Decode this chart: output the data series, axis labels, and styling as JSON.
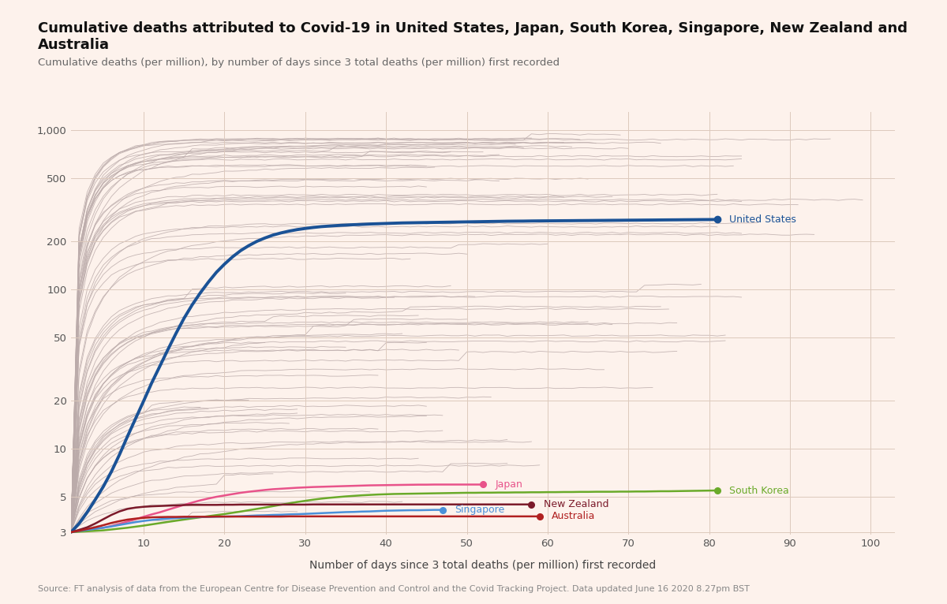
{
  "title": "Cumulative deaths attributed to Covid-19 in United States, Japan, South Korea, Singapore, New Zealand and Australia",
  "subtitle": "Cumulative deaths (per million), by number of days since 3 total deaths (per million) first recorded",
  "xlabel": "Number of days since 3 total deaths (per million) first recorded",
  "source": "Source: FT analysis of data from the European Centre for Disease Prevention and Control and the Covid Tracking Project. Data updated June 16 2020 8.27pm BST",
  "background_color": "#fdf2ec",
  "plot_background": "#fdf2ec",
  "grid_color": "#ddc9bc",
  "yticks": [
    3,
    5,
    10,
    20,
    50,
    100,
    200,
    500,
    1000
  ],
  "xticks": [
    10,
    20,
    30,
    40,
    50,
    60,
    70,
    80,
    90,
    100
  ],
  "xlim": [
    1,
    103
  ],
  "ylim_log": [
    2.9,
    1300
  ],
  "gray_line_color": "#bbabaa",
  "us_color": "#1a5296",
  "japan_color": "#e8538a",
  "sk_color": "#6aaa2a",
  "singapore_color": "#4a90d9",
  "nz_color": "#7b1a2a",
  "australia_color": "#b02020",
  "us_linewidth": 2.8,
  "featured_linewidth": 1.8,
  "title_fontsize": 13,
  "subtitle_fontsize": 9.5,
  "label_fontsize": 9,
  "source_fontsize": 8,
  "us_data": [
    3.0,
    3.4,
    4.0,
    4.8,
    5.8,
    7.2,
    9.2,
    12.0,
    15.5,
    20.0,
    26.0,
    33.0,
    42.0,
    53.0,
    66.0,
    80.0,
    95.0,
    111.0,
    128.0,
    144.0,
    160.0,
    175.0,
    188.0,
    200.0,
    210.0,
    219.0,
    226.0,
    232.0,
    237.0,
    241.0,
    244.5,
    247.5,
    249.5,
    251.5,
    253.0,
    254.5,
    255.5,
    257.0,
    258.0,
    259.0,
    260.0,
    261.0,
    261.5,
    262.0,
    262.5,
    263.0,
    263.5,
    264.0,
    264.5,
    265.0,
    265.5,
    266.0,
    266.5,
    267.0,
    267.5,
    267.8,
    268.0,
    268.5,
    268.8,
    269.0,
    269.2,
    269.5,
    269.7,
    270.0,
    270.2,
    270.5,
    270.7,
    271.0,
    271.2,
    271.5,
    271.7,
    272.0,
    272.2,
    272.5,
    272.8,
    273.0,
    273.3,
    273.5,
    273.8,
    274.0,
    274.3
  ],
  "japan_data": [
    3.0,
    3.05,
    3.1,
    3.15,
    3.2,
    3.28,
    3.38,
    3.5,
    3.62,
    3.75,
    3.88,
    4.0,
    4.15,
    4.3,
    4.45,
    4.6,
    4.75,
    4.88,
    5.0,
    5.1,
    5.2,
    5.3,
    5.38,
    5.45,
    5.52,
    5.58,
    5.62,
    5.66,
    5.7,
    5.73,
    5.76,
    5.78,
    5.8,
    5.82,
    5.84,
    5.86,
    5.88,
    5.9,
    5.91,
    5.92,
    5.93,
    5.94,
    5.95,
    5.96,
    5.96,
    5.97,
    5.97,
    5.97,
    5.97,
    5.97,
    5.97,
    5.97
  ],
  "south_korea_data": [
    3.0,
    3.02,
    3.04,
    3.06,
    3.08,
    3.12,
    3.16,
    3.2,
    3.25,
    3.3,
    3.36,
    3.42,
    3.48,
    3.54,
    3.6,
    3.66,
    3.72,
    3.78,
    3.84,
    3.9,
    3.97,
    4.04,
    4.12,
    4.2,
    4.28,
    4.37,
    4.46,
    4.55,
    4.64,
    4.72,
    4.8,
    4.87,
    4.93,
    4.98,
    5.03,
    5.07,
    5.11,
    5.14,
    5.17,
    5.19,
    5.21,
    5.22,
    5.23,
    5.24,
    5.25,
    5.26,
    5.27,
    5.28,
    5.29,
    5.3,
    5.3,
    5.31,
    5.31,
    5.32,
    5.32,
    5.33,
    5.33,
    5.34,
    5.34,
    5.35,
    5.35,
    5.36,
    5.36,
    5.37,
    5.37,
    5.38,
    5.38,
    5.38,
    5.39,
    5.39,
    5.4,
    5.4,
    5.41,
    5.42,
    5.42,
    5.43,
    5.44,
    5.45,
    5.46,
    5.47,
    5.48
  ],
  "singapore_data": [
    3.0,
    3.05,
    3.1,
    3.15,
    3.2,
    3.26,
    3.33,
    3.4,
    3.47,
    3.53,
    3.58,
    3.62,
    3.65,
    3.68,
    3.7,
    3.72,
    3.73,
    3.74,
    3.75,
    3.76,
    3.77,
    3.78,
    3.8,
    3.82,
    3.83,
    3.85,
    3.86,
    3.88,
    3.89,
    3.91,
    3.93,
    3.95,
    3.97,
    3.99,
    4.01,
    4.02,
    4.04,
    4.05,
    4.07,
    4.09,
    4.1,
    4.11,
    4.12,
    4.12,
    4.13,
    4.14,
    4.14
  ],
  "new_zealand_data": [
    3.0,
    3.1,
    3.22,
    3.4,
    3.62,
    3.85,
    4.05,
    4.2,
    4.28,
    4.33,
    4.36,
    4.38,
    4.4,
    4.42,
    4.44,
    4.45,
    4.45,
    4.45,
    4.45,
    4.46,
    4.46,
    4.47,
    4.47,
    4.47,
    4.47,
    4.47,
    4.47,
    4.47,
    4.47,
    4.47,
    4.48,
    4.48,
    4.48,
    4.48,
    4.48,
    4.48,
    4.48,
    4.48,
    4.48,
    4.48,
    4.48,
    4.48,
    4.48,
    4.48,
    4.48,
    4.48,
    4.48,
    4.48,
    4.48,
    4.48,
    4.48,
    4.48,
    4.48,
    4.48,
    4.48,
    4.48,
    4.48,
    4.48
  ],
  "australia_data": [
    3.0,
    3.06,
    3.14,
    3.22,
    3.32,
    3.43,
    3.52,
    3.6,
    3.65,
    3.69,
    3.72,
    3.73,
    3.74,
    3.74,
    3.75,
    3.75,
    3.75,
    3.75,
    3.76,
    3.76,
    3.76,
    3.76,
    3.76,
    3.76,
    3.76,
    3.76,
    3.76,
    3.77,
    3.77,
    3.77,
    3.77,
    3.77,
    3.77,
    3.77,
    3.77,
    3.77,
    3.77,
    3.77,
    3.77,
    3.77,
    3.77,
    3.77,
    3.77,
    3.77,
    3.77,
    3.77,
    3.77,
    3.77,
    3.77,
    3.77,
    3.77,
    3.77,
    3.77,
    3.77,
    3.77,
    3.77,
    3.77,
    3.77,
    3.77
  ]
}
